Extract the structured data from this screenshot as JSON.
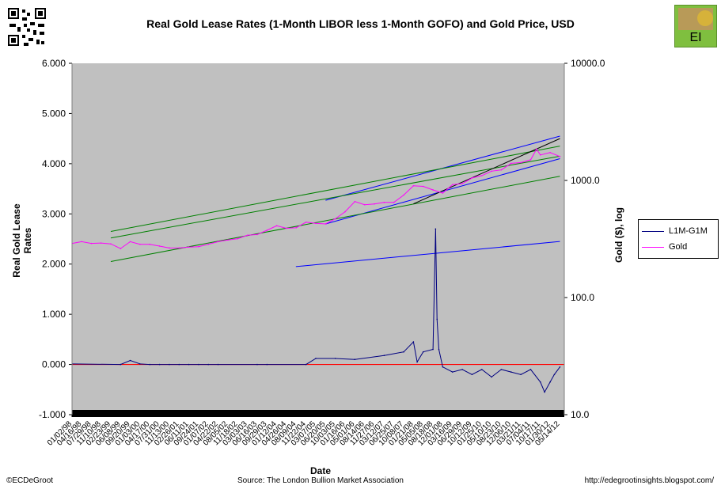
{
  "title": "Real Gold Lease Rates (1-Month LIBOR less 1-Month GOFO) and Gold Price, USD",
  "footer": {
    "left": "©ECDeGroot",
    "center": "Source:  The London Bullion Market Association",
    "right": "http://edegrootinsights.blogspot.com/"
  },
  "logo_text": "EI",
  "colors": {
    "plot_bg": "#c0c0c0",
    "lease": "#000080",
    "gold": "#ff00ff",
    "zero_line": "#ff0000",
    "trend_blue": "#0000ff",
    "trend_green": "#008000",
    "trend_black": "#000000",
    "marker": "#008000"
  },
  "chart_data": {
    "type": "line",
    "xlabel": "Date",
    "ylabel_left": "Real Gold Lease Rates",
    "ylabel_right": "Gold ($), log",
    "y_left_ticks": [
      "6.000",
      "5.000",
      "4.000",
      "3.000",
      "2.000",
      "1.000",
      "0.000",
      "-1.000"
    ],
    "y_left_lim": [
      -1,
      6
    ],
    "y_right_ticks": [
      "10000.0",
      "1000.0",
      "100.0",
      "10.0"
    ],
    "y_right_lim": [
      10,
      10000
    ],
    "y_right_scale": "log",
    "x_ticks": [
      "01/02/98",
      "04/16/98",
      "07/29/98",
      "11/10/98",
      "02/23/99",
      "06/08/99",
      "09/20/99",
      "01/03/00",
      "04/17/00",
      "07/31/00",
      "11/13/00",
      "02/26/01",
      "06/11/01",
      "09/24/01",
      "01/07/02",
      "04/22/02",
      "08/05/02",
      "11/18/02",
      "03/03/03",
      "06/16/03",
      "09/29/03",
      "01/12/04",
      "04/26/04",
      "08/09/04",
      "11/22/04",
      "03/07/05",
      "06/20/05",
      "10/03/05",
      "01/16/06",
      "05/01/06",
      "08/14/06",
      "11/27/06",
      "03/12/07",
      "06/25/07",
      "10/08/07",
      "01/21/08",
      "05/05/08",
      "08/18/08",
      "12/01/08",
      "03/16/09",
      "06/29/09",
      "10/12/09",
      "01/25/10",
      "05/10/10",
      "08/23/10",
      "12/06/10",
      "03/21/11",
      "07/04/11",
      "10/17/11",
      "01/30/12",
      "05/14/12"
    ],
    "grid": false,
    "legend_position": "right",
    "series": [
      {
        "name": "L1M-G1M",
        "axis": "left",
        "x": [
          "01/02/98",
          "06/08/99",
          "09/20/99",
          "01/03/00",
          "04/17/00",
          "07/31/00",
          "11/13/00",
          "02/26/01",
          "06/11/01",
          "09/24/01",
          "01/07/02",
          "04/22/02",
          "06/16/03",
          "09/29/03",
          "11/22/04",
          "03/07/05",
          "10/03/05",
          "05/01/06",
          "03/12/07",
          "10/08/07",
          "01/21/08",
          "03/01/08",
          "05/05/08",
          "08/18/08",
          "09/15/08",
          "10/01/08",
          "10/20/08",
          "12/01/08",
          "03/16/09",
          "06/29/09",
          "10/12/09",
          "01/25/10",
          "05/10/10",
          "08/23/10",
          "12/06/10",
          "03/21/11",
          "07/04/11",
          "10/17/11",
          "12/01/11",
          "01/30/12",
          "03/15/12",
          "05/14/12"
        ],
        "values": [
          0.01,
          0.0,
          0.08,
          0.01,
          0.0,
          0.0,
          0.0,
          0.0,
          0.0,
          0.0,
          0.0,
          0.0,
          0.0,
          0.0,
          0.0,
          0.12,
          0.12,
          0.1,
          0.18,
          0.25,
          0.45,
          0.05,
          0.25,
          0.3,
          2.7,
          0.9,
          0.3,
          -0.05,
          -0.15,
          -0.1,
          -0.2,
          -0.1,
          -0.25,
          -0.1,
          -0.15,
          -0.2,
          -0.1,
          -0.35,
          -0.55,
          -0.35,
          -0.2,
          -0.05
        ]
      },
      {
        "name": "Gold",
        "axis": "right",
        "x": [
          "01/02/98",
          "04/16/98",
          "07/29/98",
          "11/10/98",
          "02/23/99",
          "06/08/99",
          "09/20/99",
          "01/03/00",
          "04/17/00",
          "07/31/00",
          "11/13/00",
          "02/26/01",
          "06/11/01",
          "09/24/01",
          "01/07/02",
          "04/22/02",
          "08/05/02",
          "11/18/02",
          "03/03/03",
          "06/16/03",
          "09/29/03",
          "01/12/04",
          "04/26/04",
          "08/09/04",
          "11/22/04",
          "03/07/05",
          "06/20/05",
          "10/03/05",
          "01/16/06",
          "05/01/06",
          "08/14/06",
          "11/27/06",
          "03/12/07",
          "06/25/07",
          "10/08/07",
          "01/21/08",
          "05/05/08",
          "08/18/08",
          "12/01/08",
          "03/16/09",
          "06/29/09",
          "10/12/09",
          "01/25/10",
          "05/10/10",
          "08/23/10",
          "12/06/10",
          "03/21/11",
          "07/04/11",
          "09/05/11",
          "10/17/11",
          "01/30/12",
          "05/14/12"
        ],
        "values": [
          290,
          300,
          290,
          292,
          287,
          262,
          300,
          285,
          285,
          275,
          265,
          265,
          270,
          272,
          285,
          300,
          310,
          318,
          340,
          345,
          375,
          410,
          390,
          395,
          440,
          430,
          425,
          470,
          540,
          660,
          620,
          630,
          650,
          650,
          750,
          900,
          890,
          830,
          780,
          920,
          940,
          1050,
          1100,
          1200,
          1230,
          1400,
          1420,
          1500,
          1850,
          1650,
          1730,
          1600
        ]
      }
    ],
    "trend_lines": [
      {
        "color": "blue",
        "from": [
          "08/05/04",
          1.95
        ],
        "to": [
          "05/14/12",
          2.45
        ]
      },
      {
        "color": "blue",
        "from": [
          "06/20/05",
          3.27
        ],
        "to": [
          "05/14/12",
          4.55
        ]
      },
      {
        "color": "blue",
        "from": [
          "06/20/05",
          2.8
        ],
        "to": [
          "05/14/12",
          4.1
        ]
      },
      {
        "color": "green",
        "from": [
          "02/23/99",
          2.65
        ],
        "to": [
          "05/14/12",
          4.35
        ]
      },
      {
        "color": "green",
        "from": [
          "02/23/99",
          2.52
        ],
        "to": [
          "05/14/12",
          4.15
        ]
      },
      {
        "color": "green",
        "from": [
          "02/23/99",
          2.05
        ],
        "to": [
          "05/14/12",
          3.75
        ]
      },
      {
        "color": "black",
        "from": [
          "01/21/08",
          3.2
        ],
        "to": [
          "05/14/12",
          4.5
        ]
      }
    ]
  }
}
